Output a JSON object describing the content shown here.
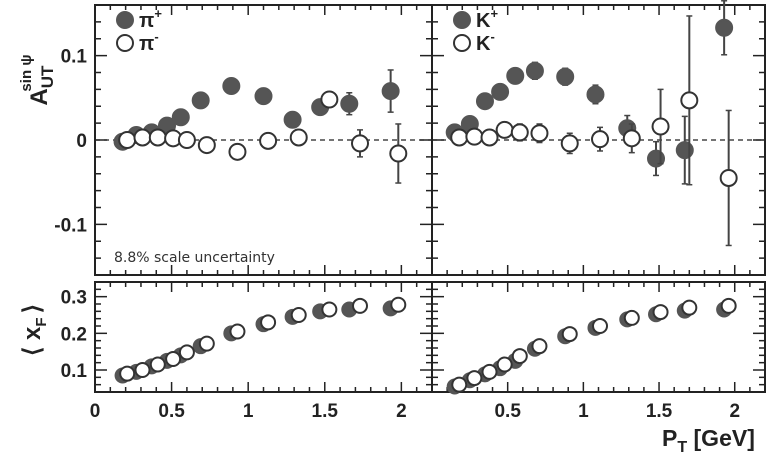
{
  "chart_data": [
    {
      "panel": "top-left",
      "type": "scatter",
      "ylabel": "A",
      "ylabel_sub": "UT",
      "ylabel_sup": "sin ψ",
      "ylim": [
        -0.16,
        0.16
      ],
      "yticks": [
        -0.1,
        0,
        0.1
      ],
      "ytick_labels": [
        "-0.1",
        "0",
        "0.1"
      ],
      "xlim": [
        0,
        2.2
      ],
      "annotation": "8.8% scale uncertainty",
      "legend_placement": "top-left",
      "series": [
        {
          "name": "π",
          "superscript": "+",
          "marker": "filled",
          "color": "#555555",
          "x": [
            0.18,
            0.27,
            0.37,
            0.47,
            0.56,
            0.69,
            0.89,
            1.1,
            1.29,
            1.47,
            1.66,
            1.93
          ],
          "y": [
            -0.002,
            0.006,
            0.009,
            0.017,
            0.027,
            0.047,
            0.064,
            0.052,
            0.024,
            0.039,
            0.043,
            0.058
          ],
          "err": [
            0.006,
            0.006,
            0.006,
            0.006,
            0.006,
            0.007,
            0.008,
            0.008,
            0.007,
            0.009,
            0.013,
            0.025
          ]
        },
        {
          "name": "π",
          "superscript": "-",
          "marker": "open",
          "color": "#555555",
          "x": [
            0.21,
            0.31,
            0.41,
            0.51,
            0.6,
            0.73,
            0.93,
            1.13,
            1.33,
            1.53,
            1.73,
            1.98
          ],
          "y": [
            0.0,
            0.003,
            0.003,
            0.002,
            0.0,
            -0.006,
            -0.014,
            -0.001,
            0.003,
            0.048,
            -0.004,
            -0.016
          ],
          "err": [
            0.006,
            0.006,
            0.006,
            0.006,
            0.006,
            0.007,
            0.008,
            0.008,
            0.007,
            0.009,
            0.016,
            0.035
          ]
        }
      ]
    },
    {
      "panel": "top-right",
      "type": "scatter",
      "ylim": [
        -0.16,
        0.16
      ],
      "xlim": [
        0,
        2.2
      ],
      "legend_placement": "top-left",
      "series": [
        {
          "name": "K",
          "superscript": "+",
          "marker": "filled",
          "color": "#555555",
          "x": [
            0.15,
            0.25,
            0.35,
            0.45,
            0.55,
            0.68,
            0.88,
            1.08,
            1.29,
            1.48,
            1.67,
            1.93
          ],
          "y": [
            0.009,
            0.019,
            0.046,
            0.057,
            0.076,
            0.082,
            0.075,
            0.054,
            0.014,
            -0.022,
            -0.012,
            0.133
          ],
          "err": [
            0.008,
            0.008,
            0.008,
            0.009,
            0.009,
            0.01,
            0.01,
            0.011,
            0.015,
            0.02,
            0.04,
            0.032
          ]
        },
        {
          "name": "K",
          "superscript": "-",
          "marker": "open",
          "color": "#555555",
          "x": [
            0.18,
            0.28,
            0.38,
            0.48,
            0.58,
            0.71,
            0.91,
            1.11,
            1.32,
            1.51,
            1.7,
            1.96
          ],
          "y": [
            0.003,
            0.004,
            0.003,
            0.012,
            0.009,
            0.008,
            -0.004,
            0.001,
            0.002,
            0.016,
            0.047,
            -0.045
          ],
          "err": [
            0.009,
            0.009,
            0.009,
            0.009,
            0.01,
            0.011,
            0.012,
            0.014,
            0.017,
            0.044,
            0.1,
            0.08
          ]
        }
      ]
    },
    {
      "panel": "bottom-left",
      "type": "scatter",
      "ylabel": "⟨ x",
      "ylabel_sub": "F",
      "ylabel_close": "⟩",
      "ylim": [
        0.04,
        0.34
      ],
      "yticks": [
        0.1,
        0.2,
        0.3
      ],
      "ytick_labels": [
        "0.1",
        "0.2",
        "0.3"
      ],
      "xlim": [
        0,
        2.2
      ],
      "xticks": [
        0,
        0.5,
        1,
        1.5,
        2
      ],
      "xtick_labels": [
        "0",
        "0.5",
        "1",
        "1.5",
        "2"
      ],
      "series": [
        {
          "name": "π",
          "superscript": "+",
          "marker": "filled",
          "color": "#555555",
          "x": [
            0.18,
            0.27,
            0.37,
            0.47,
            0.56,
            0.69,
            0.89,
            1.1,
            1.29,
            1.47,
            1.66,
            1.93
          ],
          "y": [
            0.085,
            0.095,
            0.11,
            0.125,
            0.14,
            0.165,
            0.2,
            0.225,
            0.245,
            0.26,
            0.265,
            0.268
          ]
        },
        {
          "name": "π",
          "superscript": "-",
          "marker": "open",
          "color": "#555555",
          "x": [
            0.21,
            0.31,
            0.41,
            0.51,
            0.6,
            0.73,
            0.93,
            1.13,
            1.33,
            1.53,
            1.73,
            1.98
          ],
          "y": [
            0.09,
            0.1,
            0.115,
            0.13,
            0.148,
            0.172,
            0.205,
            0.23,
            0.25,
            0.265,
            0.275,
            0.278
          ]
        }
      ]
    },
    {
      "panel": "bottom-right",
      "type": "scatter",
      "ylim": [
        0.04,
        0.34
      ],
      "xlim": [
        0,
        2.2
      ],
      "xticks": [
        0.5,
        1,
        1.5,
        2
      ],
      "xtick_labels": [
        "0.5",
        "1",
        "1.5",
        "2"
      ],
      "xlabel": "P",
      "xlabel_sub": "T",
      "xlabel_unit": " [GeV]",
      "series": [
        {
          "name": "K",
          "superscript": "+",
          "marker": "filled",
          "color": "#555555",
          "x": [
            0.15,
            0.25,
            0.35,
            0.45,
            0.55,
            0.68,
            0.88,
            1.08,
            1.29,
            1.48,
            1.67,
            1.93
          ],
          "y": [
            0.055,
            0.072,
            0.088,
            0.105,
            0.125,
            0.158,
            0.192,
            0.215,
            0.238,
            0.252,
            0.262,
            0.265
          ]
        },
        {
          "name": "K",
          "superscript": "-",
          "marker": "open",
          "color": "#555555",
          "x": [
            0.18,
            0.28,
            0.38,
            0.48,
            0.58,
            0.71,
            0.91,
            1.11,
            1.32,
            1.51,
            1.7,
            1.96
          ],
          "y": [
            0.06,
            0.078,
            0.095,
            0.115,
            0.138,
            0.165,
            0.198,
            0.22,
            0.242,
            0.258,
            0.27,
            0.275
          ]
        }
      ]
    }
  ]
}
